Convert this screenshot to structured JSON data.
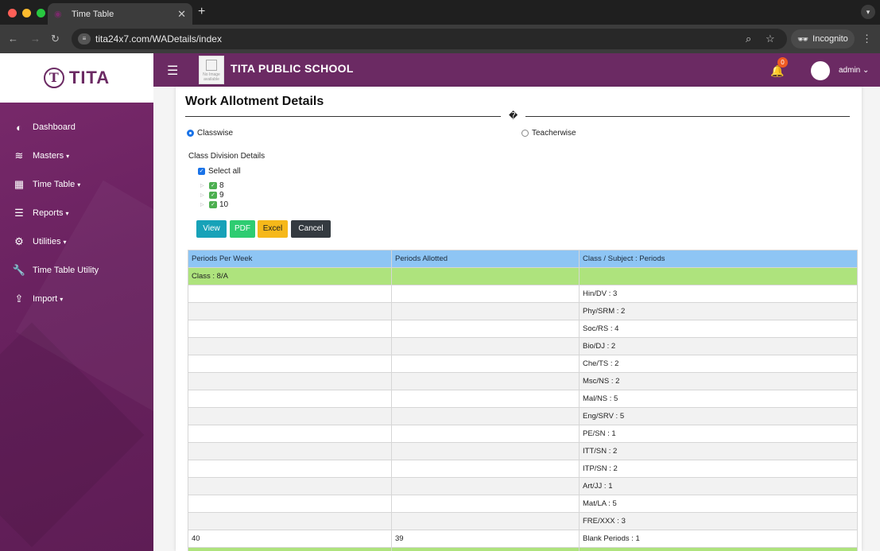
{
  "browser": {
    "tab_title": "Time Table",
    "url": "tita24x7.com/WADetails/index",
    "incognito_label": "Incognito"
  },
  "sidebar": {
    "logo_text": "TITA",
    "items": [
      {
        "label": "Dashboard",
        "icon": "dashboard-icon",
        "caret": ""
      },
      {
        "label": "Masters",
        "icon": "database-icon",
        "caret": "▾"
      },
      {
        "label": "Time Table",
        "icon": "calendar-icon",
        "caret": "▾"
      },
      {
        "label": "Reports",
        "icon": "list-icon",
        "caret": "▾"
      },
      {
        "label": "Utilities",
        "icon": "gear-icon",
        "caret": "▾"
      },
      {
        "label": "Time Table Utility",
        "icon": "wrench-icon",
        "caret": ""
      },
      {
        "label": "Import",
        "icon": "upload-icon",
        "caret": "▾"
      }
    ]
  },
  "header": {
    "school_name": "TITA PUBLIC SCHOOL",
    "no_image_text": "No Image available",
    "notification_count": "0",
    "user": "admin"
  },
  "main": {
    "title": "Work Allotment Details",
    "divider_glyph": "�",
    "radio_classwise": "Classwise",
    "radio_teacherwise": "Teacherwise",
    "section_label": "Class Division Details",
    "select_all": "Select all",
    "tree": [
      "8",
      "9",
      "10"
    ],
    "buttons": {
      "view": "View",
      "pdf": "PDF",
      "excel": "Excel",
      "cancel": "Cancel"
    }
  },
  "table": {
    "headers": [
      "Periods Per Week",
      "Periods Allotted",
      "Class / Subject : Periods"
    ],
    "class_row": "Class : 8/A",
    "subject_rows": [
      "Hin/DV : 3",
      "Phy/SRM : 2",
      "Soc/RS : 4",
      "Bio/DJ : 2",
      "Che/TS : 2",
      "Msc/NS : 2",
      "Mal/NS : 5",
      "Eng/SRV : 5",
      "PE/SN : 1",
      "ITT/SN : 2",
      "ITP/SN : 2",
      "Art/JJ : 1",
      "Mat/LA : 5",
      "FRE/XXX : 3"
    ],
    "summary": {
      "periods_per_week": "40",
      "periods_allotted": "39",
      "blank": "Blank Periods : 1"
    }
  },
  "colors": {
    "brand": "#6b2a63",
    "view": "#17a2b8",
    "pdf": "#2ecc71",
    "excel": "#f6b81a",
    "cancel": "#343a40",
    "header_row": "#8ec5f4",
    "class_row": "#aee37d"
  }
}
